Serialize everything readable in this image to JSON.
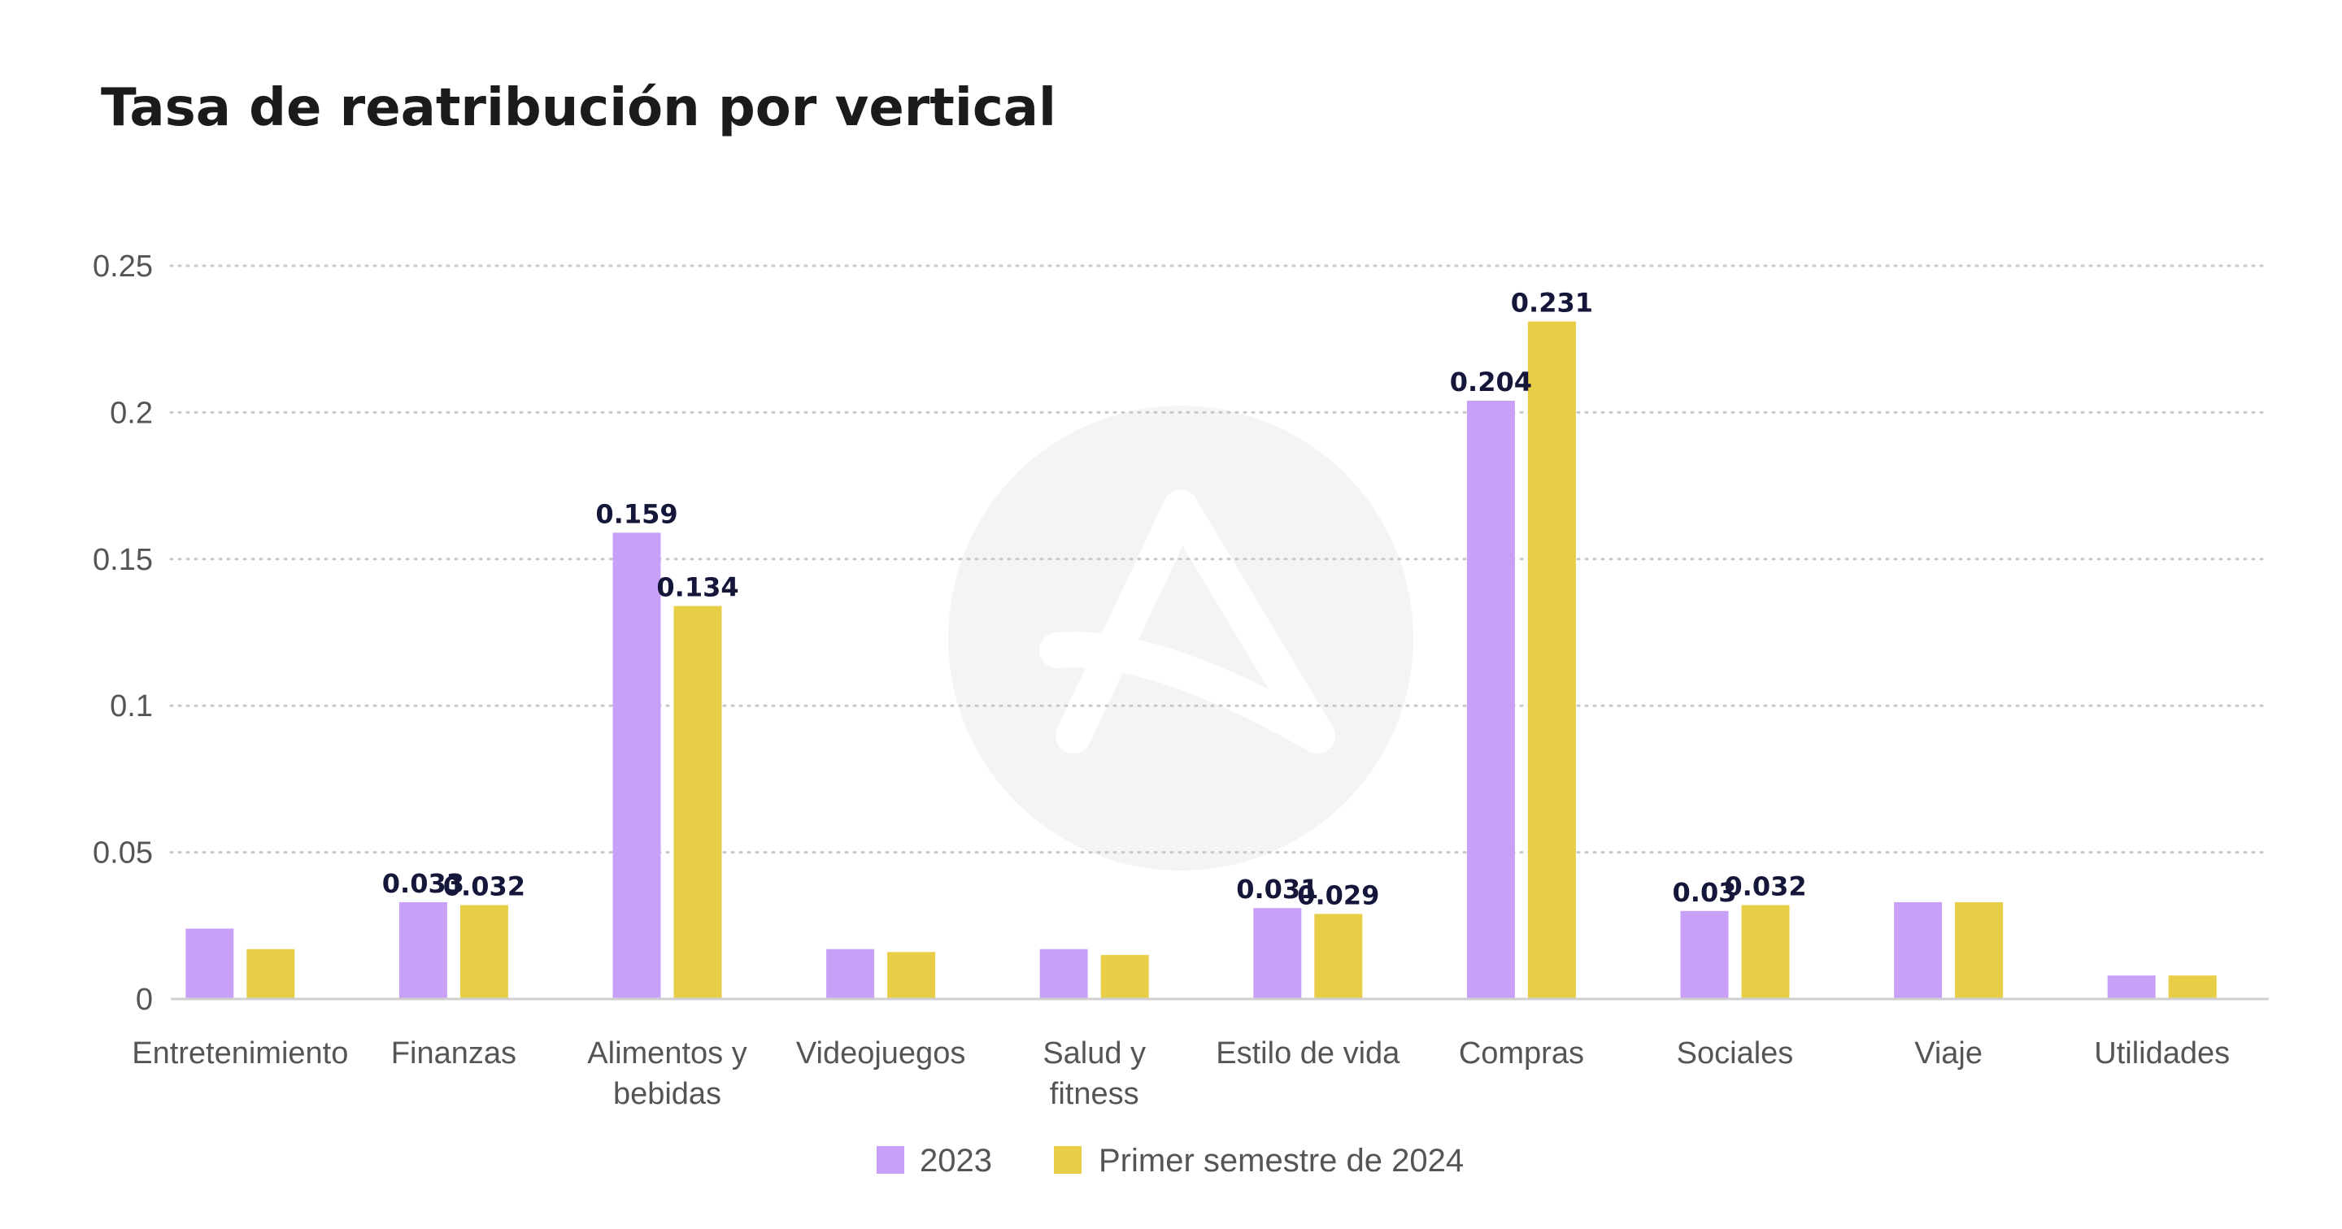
{
  "chart_data": {
    "type": "bar",
    "title": "Tasa de reatribución por vertical",
    "categories": [
      "Entretenimiento",
      "Finanzas",
      "Alimentos y bebidas",
      "Videojuegos",
      "Salud y fitness",
      "Estilo de vida",
      "Compras",
      "Sociales",
      "Viaje",
      "Utilidades"
    ],
    "category_lines": [
      [
        "Entretenimiento"
      ],
      [
        "Finanzas"
      ],
      [
        "Alimentos y",
        "bebidas"
      ],
      [
        "Videojuegos"
      ],
      [
        "Salud y",
        "fitness"
      ],
      [
        "Estilo de vida"
      ],
      [
        "Compras"
      ],
      [
        "Sociales"
      ],
      [
        "Viaje"
      ],
      [
        "Utilidades"
      ]
    ],
    "series": [
      {
        "name": "2023",
        "color": "#c9a0f8",
        "values": [
          0.024,
          0.033,
          0.159,
          0.017,
          0.017,
          0.031,
          0.204,
          0.03,
          0.033,
          0.008
        ],
        "labels": [
          null,
          "0.033",
          "0.159",
          null,
          null,
          "0.031",
          "0.204",
          "0.03",
          null,
          null
        ]
      },
      {
        "name": "Primer semestre de 2024",
        "color": "#e8cd47",
        "values": [
          0.017,
          0.032,
          0.134,
          0.016,
          0.015,
          0.029,
          0.231,
          0.032,
          0.033,
          0.008
        ],
        "labels": [
          null,
          "0.032",
          "0.134",
          null,
          null,
          "0.029",
          "0.231",
          "0.032",
          null,
          null
        ]
      }
    ],
    "yticks": [
      0,
      0.05,
      0.1,
      0.15,
      0.2,
      0.25
    ],
    "ytick_labels": [
      "0",
      "0.05",
      "0.1",
      "0.15",
      "0.2",
      "0.25"
    ],
    "ylim": [
      0,
      0.25
    ],
    "grid": true,
    "grid_style": "dotted",
    "legend_position": "bottom-center",
    "watermark": "logo-icon"
  }
}
